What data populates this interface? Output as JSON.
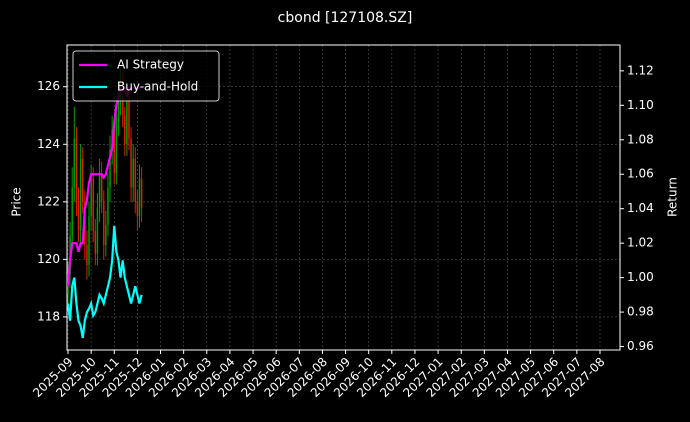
{
  "chart_data": {
    "type": "candlestick",
    "title": "cbond [127108.SZ]",
    "y_label": "Price",
    "y2_label": "Return",
    "xticks": [
      "2025-09",
      "2025-10",
      "2025-11",
      "2025-12",
      "2026-01",
      "2026-02",
      "2026-03",
      "2026-04",
      "2026-05",
      "2026-06",
      "2026-07",
      "2026-08",
      "2026-09",
      "2026-10",
      "2026-11",
      "2026-12",
      "2027-01",
      "2027-02",
      "2027-03",
      "2027-04",
      "2027-05",
      "2027-06",
      "2027-07",
      "2027-08"
    ],
    "ylim": [
      116.85,
      127.45
    ],
    "yticks": [
      118,
      120,
      122,
      124,
      126
    ],
    "y2lim": [
      0.958,
      1.135
    ],
    "y2ticks": [
      {
        "value": 0.96,
        "label": "0.96"
      },
      {
        "value": 0.98,
        "label": "0.98"
      },
      {
        "value": 1.0,
        "label": "1.00"
      },
      {
        "value": 1.02,
        "label": "1.02"
      },
      {
        "value": 1.04,
        "label": "1.04"
      },
      {
        "value": 1.06,
        "label": "1.06"
      },
      {
        "value": 1.08,
        "label": "1.08"
      },
      {
        "value": 1.1,
        "label": "1.10"
      },
      {
        "value": 1.12,
        "label": "1.12"
      }
    ],
    "grid": true,
    "legend": "upper left",
    "candles": {
      "up_color": "#00a000",
      "down_color": "#e02000",
      "open": [
        118.8,
        119.5,
        120.8,
        122.5,
        124.2,
        122.0,
        121.0,
        123.5,
        122.0,
        120.5,
        119.8,
        121.5,
        122.8,
        121.0,
        120.2,
        121.8,
        123.0,
        122.0,
        120.5,
        121.2,
        122.5,
        123.8,
        124.5,
        123.0,
        124.8,
        125.5,
        126.2,
        125.0,
        124.0,
        125.5,
        124.2,
        122.5,
        123.5,
        122.0,
        121.5,
        122.8
      ],
      "high": [
        119.9,
        121.3,
        123.2,
        125.3,
        124.6,
        122.5,
        124.0,
        123.9,
        122.4,
        121.0,
        122.0,
        123.3,
        123.2,
        121.4,
        122.3,
        123.5,
        123.4,
        122.4,
        121.7,
        123.0,
        124.3,
        125.0,
        124.9,
        125.2,
        126.0,
        126.6,
        126.5,
        125.3,
        126.0,
        125.9,
        124.6,
        124.0,
        123.9,
        122.4,
        123.3,
        123.2
      ],
      "low": [
        118.2,
        119.0,
        120.3,
        122.0,
        121.5,
        120.6,
        120.6,
        121.6,
        120.0,
        119.3,
        119.4,
        121.0,
        120.6,
        119.8,
        119.8,
        121.3,
        121.6,
        120.0,
        120.1,
        120.8,
        122.0,
        123.3,
        122.6,
        122.6,
        124.3,
        125.0,
        124.6,
        123.6,
        123.6,
        123.8,
        122.0,
        122.0,
        121.6,
        121.0,
        121.1,
        121.3
      ],
      "close": [
        119.5,
        120.8,
        122.5,
        124.2,
        122.0,
        121.0,
        123.5,
        122.0,
        120.5,
        119.8,
        121.5,
        122.8,
        121.0,
        120.2,
        121.8,
        123.0,
        122.0,
        120.5,
        121.2,
        122.5,
        123.8,
        124.5,
        123.0,
        124.8,
        125.5,
        126.2,
        125.0,
        124.0,
        125.5,
        124.2,
        122.5,
        123.5,
        122.0,
        121.5,
        122.8,
        121.8
      ]
    },
    "series": [
      {
        "name": "AI Strategy",
        "color": "#ff00ff",
        "axis": "y2",
        "values": [
          0.995,
          1.01,
          1.02,
          1.02,
          1.02,
          1.015,
          1.02,
          1.02,
          1.04,
          1.045,
          1.055,
          1.06,
          1.06,
          1.06,
          1.06,
          1.06,
          1.06,
          1.058,
          1.06,
          1.065,
          1.07,
          1.075,
          1.09,
          1.1,
          1.105,
          1.11,
          1.11,
          1.11,
          1.105,
          1.11,
          1.11,
          1.11,
          1.11,
          1.11,
          1.11,
          1.11
        ]
      },
      {
        "name": "Buy-and-Hold",
        "color": "#00ffff",
        "axis": "y2",
        "values": [
          0.985,
          0.975,
          0.995,
          1.0,
          0.985,
          0.975,
          0.972,
          0.965,
          0.975,
          0.98,
          0.982,
          0.985,
          0.978,
          0.98,
          0.985,
          0.99,
          0.988,
          0.985,
          0.99,
          0.995,
          1.0,
          1.01,
          1.03,
          1.015,
          1.01,
          1.0,
          1.01,
          1.0,
          0.995,
          0.99,
          0.985,
          0.99,
          0.995,
          0.99,
          0.985,
          0.99
        ]
      }
    ]
  }
}
